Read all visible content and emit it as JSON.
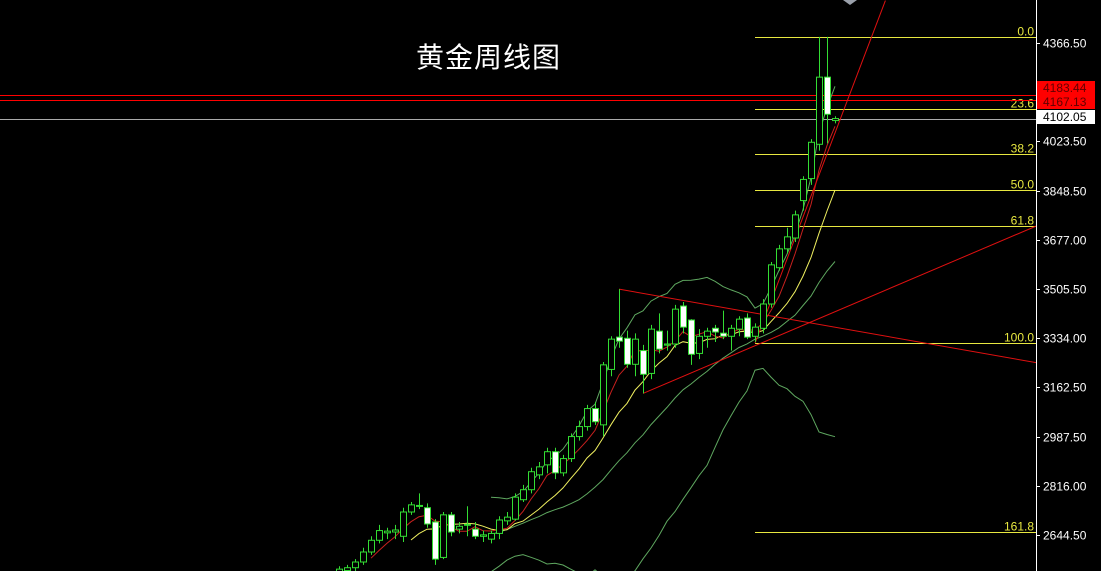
{
  "title": "黄金周线图",
  "chart_data": {
    "type": "candlestick",
    "title": "黄金周线图",
    "ylim": [
      2511,
      4515
    ],
    "y_ticks": [
      4366.5,
      4023.5,
      3848.5,
      3677.0,
      3505.5,
      3334.0,
      3162.5,
      2987.5,
      2816.0,
      2644.5
    ],
    "y_tick_labels": [
      "4366.50",
      "4023.50",
      "3848.50",
      "3677.00",
      "3505.50",
      "3334.00",
      "3162.50",
      "2987.50",
      "2816.00",
      "2644.50"
    ],
    "candle_fields": [
      "open",
      "high",
      "low",
      "close"
    ],
    "candles": [
      [
        2515,
        2535,
        2505,
        2525
      ],
      [
        2520,
        2540,
        2505,
        2530
      ],
      [
        2530,
        2560,
        2515,
        2550
      ],
      [
        2550,
        2600,
        2540,
        2585
      ],
      [
        2585,
        2640,
        2575,
        2626
      ],
      [
        2626,
        2680,
        2615,
        2660
      ],
      [
        2652,
        2670,
        2630,
        2658
      ],
      [
        2655,
        2680,
        2630,
        2662
      ],
      [
        2640,
        2740,
        2620,
        2725
      ],
      [
        2725,
        2760,
        2715,
        2750
      ],
      [
        2745,
        2790,
        2735,
        2748
      ],
      [
        2740,
        2755,
        2670,
        2683
      ],
      [
        2690,
        2700,
        2540,
        2560
      ],
      [
        2566,
        2725,
        2560,
        2715
      ],
      [
        2715,
        2725,
        2640,
        2655
      ],
      [
        2665,
        2690,
        2650,
        2675
      ],
      [
        2680,
        2745,
        2640,
        2682
      ],
      [
        2665,
        2690,
        2630,
        2640
      ],
      [
        2640,
        2660,
        2620,
        2645
      ],
      [
        2630,
        2660,
        2615,
        2650
      ],
      [
        2650,
        2710,
        2630,
        2697
      ],
      [
        2694,
        2725,
        2680,
        2707
      ],
      [
        2700,
        2790,
        2695,
        2777
      ],
      [
        2768,
        2820,
        2760,
        2803
      ],
      [
        2803,
        2880,
        2790,
        2866
      ],
      [
        2855,
        2900,
        2840,
        2883
      ],
      [
        2890,
        2950,
        2860,
        2936
      ],
      [
        2936,
        2950,
        2840,
        2862
      ],
      [
        2862,
        2925,
        2850,
        2912
      ],
      [
        2912,
        3000,
        2900,
        2989
      ],
      [
        2989,
        3045,
        2975,
        3024
      ],
      [
        3024,
        3100,
        3010,
        3087
      ],
      [
        3087,
        3110,
        3030,
        3041
      ],
      [
        3030,
        3250,
        2990,
        3240
      ],
      [
        3224,
        3340,
        3200,
        3330
      ],
      [
        3337,
        3505,
        3300,
        3323
      ],
      [
        3333,
        3360,
        3230,
        3242
      ],
      [
        3242,
        3350,
        3200,
        3330
      ],
      [
        3290,
        3310,
        3140,
        3207
      ],
      [
        3210,
        3380,
        3190,
        3365
      ],
      [
        3358,
        3420,
        3280,
        3295
      ],
      [
        3309,
        3360,
        3290,
        3313
      ],
      [
        3313,
        3450,
        3300,
        3435
      ],
      [
        3446,
        3460,
        3350,
        3372
      ],
      [
        3397,
        3400,
        3240,
        3277
      ],
      [
        3280,
        3365,
        3260,
        3340
      ],
      [
        3340,
        3370,
        3300,
        3358
      ],
      [
        3368,
        3380,
        3320,
        3355
      ],
      [
        3351,
        3430,
        3330,
        3340
      ],
      [
        3340,
        3380,
        3290,
        3368
      ],
      [
        3365,
        3410,
        3340,
        3400
      ],
      [
        3404,
        3420,
        3330,
        3337
      ],
      [
        3340,
        3385,
        3320,
        3372
      ],
      [
        3368,
        3470,
        3350,
        3453
      ],
      [
        3453,
        3600,
        3440,
        3590
      ],
      [
        3580,
        3660,
        3570,
        3646
      ],
      [
        3646,
        3720,
        3630,
        3688
      ],
      [
        3684,
        3780,
        3670,
        3765
      ],
      [
        3815,
        3900,
        3780,
        3889
      ],
      [
        3892,
        4030,
        3870,
        4019
      ],
      [
        4012,
        4388,
        3990,
        4247
      ],
      [
        4247,
        4388,
        4015,
        4117
      ],
      [
        4095,
        4110,
        4085,
        4102.05
      ]
    ],
    "indicators": {
      "ma_fast_period": 5,
      "ma_slow_period": 10,
      "bollinger_period": 20,
      "ma_fast_color": "#c8201e",
      "ma_slow_color": "#f0f060",
      "bollinger_color": "#5fa860"
    },
    "fibonacci": {
      "high": 4388,
      "low": 3317,
      "levels": [
        {
          "ratio": 0.0,
          "label": "0.0"
        },
        {
          "ratio": 0.236,
          "label": "23.6"
        },
        {
          "ratio": 0.382,
          "label": "38.2"
        },
        {
          "ratio": 0.5,
          "label": "50.0"
        },
        {
          "ratio": 0.618,
          "label": "61.8"
        },
        {
          "ratio": 1.0,
          "label": "100.0"
        },
        {
          "ratio": 1.618,
          "label": "161.8"
        }
      ],
      "color": "#e8e840"
    },
    "horizontal_lines": [
      {
        "price": 4183.44,
        "label": "4183.44",
        "color": "#ff0000"
      },
      {
        "price": 4167.13,
        "label": "4167.13",
        "color": "#ff0000"
      },
      {
        "price": 4102.05,
        "label": "4102.05",
        "color": "#aaaaaa"
      }
    ],
    "trendlines": [
      {
        "from": [
          35,
          3505
        ],
        "to": [
          87.5,
          3246
        ],
        "color": "#e01010"
      },
      {
        "from": [
          38,
          3140
        ],
        "to": [
          87.5,
          3730
        ],
        "color": "#e01010"
      },
      {
        "from": [
          52,
          3316
        ],
        "to": [
          68.3,
          4515
        ],
        "color": "#e01010"
      }
    ],
    "candle_colors": {
      "outline": "#33dd33",
      "bear_fill": "#ffffff",
      "bull_fill": "#000000"
    },
    "background": "#000000",
    "grid": false
  }
}
